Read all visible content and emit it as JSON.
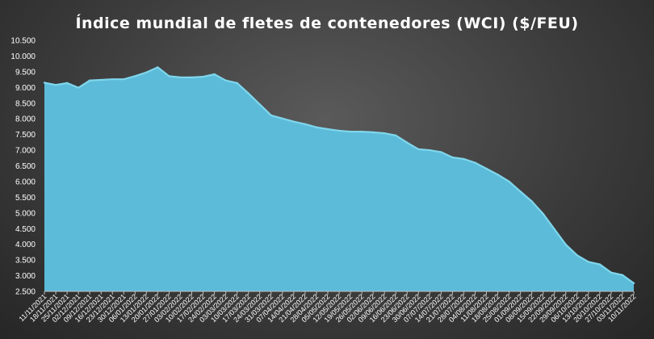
{
  "chart_data": {
    "type": "area",
    "title": "Índice mundial  de fletes de contenedores (WCI) ($/FEU)",
    "xlabel": "",
    "ylabel": "",
    "ylim": [
      2500,
      10500
    ],
    "yticks": [
      "2.500",
      "3.000",
      "3.500",
      "4.000",
      "4.500",
      "5.000",
      "5.500",
      "6.000",
      "6.500",
      "7.000",
      "7.500",
      "8.000",
      "8.500",
      "9.000",
      "9.500",
      "10.000",
      "10.500"
    ],
    "x": [
      "11/11/2021",
      "18/11/2021",
      "25/11/2021",
      "02/12/2021",
      "09/12/2021",
      "16/12/2021",
      "23/12/2021",
      "30/12/2021",
      "06/01/2022",
      "13/01/2022",
      "20/01/2022",
      "27/01/2022",
      "03/02/2022",
      "10/02/2022",
      "17/02/2022",
      "24/02/2022",
      "03/03/2022",
      "10/03/2022",
      "17/03/2022",
      "24/03/2022",
      "31/03/2022",
      "07/04/2022",
      "14/04/2022",
      "21/04/2022",
      "28/04/2022",
      "05/05/2022",
      "12/05/2022",
      "19/05/2022",
      "26/05/2022",
      "02/06/2022",
      "09/06/2022",
      "16/06/2022",
      "23/06/2022",
      "30/06/2022",
      "07/07/2022",
      "14/07/2022",
      "21/07/2022",
      "28/07/2022",
      "04/08/2022",
      "11/08/2022",
      "18/08/2022",
      "25/08/2022",
      "01/09/2022",
      "08/09/2022",
      "15/09/2022",
      "22/09/2022",
      "29/09/2022",
      "06/10/2022",
      "13/10/2022",
      "20/10/2022",
      "27/10/2022",
      "03/11/2022",
      "10/11/2022"
    ],
    "values": [
      9150,
      9080,
      9140,
      8990,
      9220,
      9240,
      9260,
      9260,
      9360,
      9480,
      9640,
      9360,
      9320,
      9320,
      9340,
      9420,
      9220,
      9140,
      8810,
      8460,
      8110,
      8010,
      7910,
      7830,
      7730,
      7670,
      7620,
      7590,
      7590,
      7570,
      7540,
      7470,
      7240,
      7030,
      7000,
      6940,
      6770,
      6720,
      6600,
      6410,
      6220,
      6000,
      5680,
      5370,
      4970,
      4480,
      3990,
      3650,
      3440,
      3360,
      3100,
      3020,
      2760
    ],
    "color": "#5cbbd8",
    "line_color": "#7fd6ec",
    "grid": false,
    "legend": "none"
  }
}
